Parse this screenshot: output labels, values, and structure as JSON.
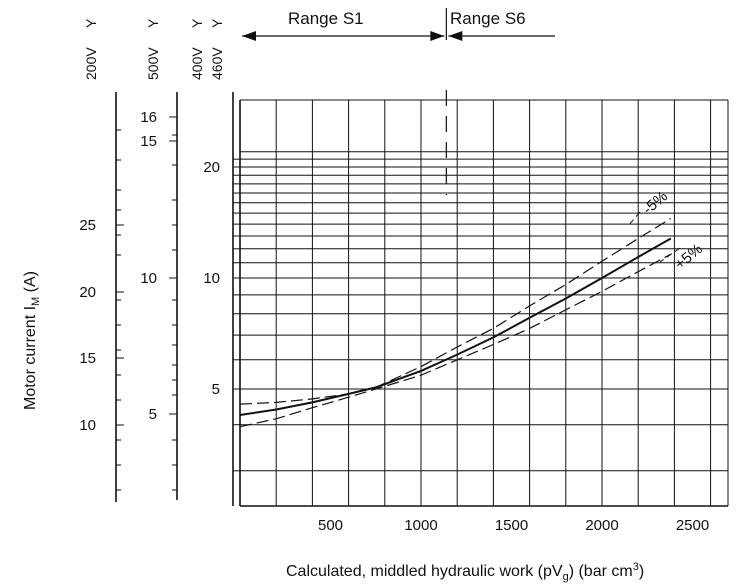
{
  "chart_data": {
    "type": "line",
    "xlabel": "Calculated, middled hydraulic work (pV",
    "xlabel_sub": "g",
    "xlabel_tail": ") (bar cm",
    "xlabel_sup": "3",
    "xlabel_end": ")",
    "ylabel_main": "Motor current  I",
    "ylabel_sub": "M",
    "ylabel_unit": " (A)",
    "x_ticks": [
      500,
      1000,
      1500,
      2000,
      2500
    ],
    "xlim": [
      0,
      2700
    ],
    "y_scale": "log",
    "ylim": [
      2.4,
      22
    ],
    "y_ticks_400V": [
      5,
      10,
      20
    ],
    "scales": [
      {
        "label": "200V",
        "symbol": "Y",
        "ticks": [
          10,
          15,
          20,
          25
        ]
      },
      {
        "label": "500V",
        "symbol": "Y",
        "ticks": [
          5,
          10,
          15,
          16
        ]
      },
      {
        "label": "400V",
        "symbol": "Y"
      },
      {
        "label": "460V",
        "symbol": "Y"
      }
    ],
    "range_s1": "Range S1",
    "range_s6": "Range S6",
    "range_boundary_x": 1140,
    "series": [
      {
        "style": "solid",
        "x": [
          0,
          200,
          400,
          600,
          750,
          1000,
          1200,
          1400,
          1600,
          1800,
          2000,
          2200,
          2380
        ],
        "y": [
          4.25,
          4.4,
          4.6,
          4.85,
          5.05,
          5.6,
          6.2,
          6.9,
          7.8,
          8.8,
          10.0,
          11.4,
          12.8
        ]
      },
      {
        "style": "dashed",
        "label": "-5%",
        "x": [
          0,
          200,
          400,
          600,
          750,
          1000,
          1200,
          1400,
          1600,
          1800,
          2000,
          2200,
          2380
        ],
        "y": [
          4.55,
          4.6,
          4.7,
          4.85,
          5.05,
          5.75,
          6.5,
          7.3,
          8.4,
          9.6,
          11.1,
          12.8,
          14.5
        ]
      },
      {
        "style": "dashed",
        "label": "+5%",
        "x": [
          0,
          200,
          400,
          600,
          750,
          1000,
          1200,
          1400,
          1600,
          1800,
          2000,
          2200,
          2380
        ],
        "y": [
          3.95,
          4.15,
          4.45,
          4.75,
          5.0,
          5.45,
          6.0,
          6.6,
          7.3,
          8.2,
          9.2,
          10.4,
          11.6
        ]
      }
    ],
    "grid": true
  }
}
